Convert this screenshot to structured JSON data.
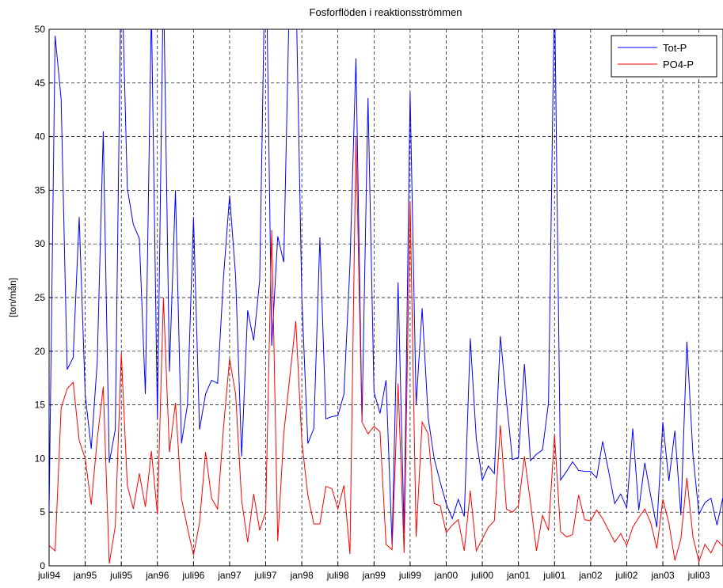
{
  "chart_data": {
    "type": "line",
    "title": "Fosforflöden i reaktionsströmmen",
    "y_label": "[ton/mån]",
    "categories": [
      "juli94",
      null,
      null,
      null,
      null,
      null,
      "jan95",
      null,
      null,
      null,
      null,
      null,
      "juli95",
      null,
      null,
      null,
      null,
      null,
      "jan96",
      null,
      null,
      null,
      null,
      null,
      "juli96",
      null,
      null,
      null,
      null,
      null,
      "jan97",
      null,
      null,
      null,
      null,
      null,
      "juli97",
      null,
      null,
      null,
      null,
      null,
      "jan98",
      null,
      null,
      null,
      null,
      null,
      "juli98",
      null,
      null,
      null,
      null,
      null,
      "jan99",
      null,
      null,
      null,
      null,
      null,
      "juli99",
      null,
      null,
      null,
      null,
      null,
      "jan00",
      null,
      null,
      null,
      null,
      null,
      "juli00",
      null,
      null,
      null,
      null,
      null,
      "jan01",
      null,
      null,
      null,
      null,
      null,
      "juli01",
      null,
      null,
      null,
      null,
      null,
      "jan02",
      null,
      null,
      null,
      null,
      null,
      "juli02",
      null,
      null,
      null,
      null,
      null,
      "jan03",
      null,
      null,
      null,
      null,
      null,
      "juli03",
      null,
      null,
      null,
      null
    ],
    "series": [
      {
        "name": "Tot-P",
        "color": "#0000ff",
        "values": [
          5,
          49.4,
          43.5,
          18.3,
          19.4,
          32.5,
          16,
          10.9,
          19,
          40.5,
          9.6,
          12.7,
          57,
          35.2,
          31.8,
          30.5,
          16,
          52,
          13.7,
          55,
          18.1,
          35,
          11.4,
          15,
          32.5,
          12.7,
          16,
          17.3,
          17,
          27,
          34.5,
          27,
          10.2,
          23.8,
          21,
          26.6,
          60,
          20.5,
          30.7,
          28.3,
          55,
          55,
          25,
          11.4,
          12.8,
          30.6,
          13.7,
          13.9,
          14,
          16,
          28,
          47.3,
          13.4,
          43.6,
          16.2,
          14.2,
          17.3,
          2,
          26.4,
          3.1,
          44.1,
          15,
          24,
          13.8,
          10,
          7.8,
          5.8,
          4.4,
          6.2,
          4.6,
          21.2,
          11.8,
          8,
          9.3,
          8.6,
          21.4,
          15.4,
          9.9,
          10.1,
          18.8,
          9.8,
          10.4,
          10.8,
          15.2,
          54,
          8,
          8.8,
          9.7,
          8.9,
          8.8,
          8.8,
          8.2,
          11.6,
          8.8,
          5.8,
          6.7,
          5.4,
          12.8,
          5.2,
          9.6,
          6.5,
          3.6,
          13.4,
          7.9,
          12.6,
          4.7,
          20.9,
          10.4,
          4.8,
          5.9,
          6.3,
          3.8,
          6.4
        ]
      },
      {
        "name": "PO4-P",
        "color": "#ff0000",
        "values": [
          1.9,
          1.4,
          14.7,
          16.5,
          17.1,
          11.7,
          10,
          5.7,
          11.8,
          16.7,
          0.2,
          3.7,
          19.8,
          7.5,
          5.3,
          8.6,
          5.5,
          10.7,
          4.8,
          25,
          10.6,
          15.2,
          6.3,
          3.5,
          1,
          4,
          10.6,
          6.3,
          5.3,
          13,
          19.3,
          16,
          6.1,
          2.2,
          6.7,
          3.3,
          5,
          31.3,
          2.3,
          12.3,
          17.6,
          22.8,
          11.6,
          6.6,
          3.9,
          3.9,
          7.4,
          7.2,
          5.3,
          7.5,
          1.1,
          40,
          13.4,
          12.3,
          13,
          12.5,
          2,
          1.5,
          17,
          1.2,
          34,
          2.7,
          13.4,
          12.3,
          5.8,
          5.6,
          3.1,
          3.8,
          4.3,
          1.4,
          7,
          1.4,
          2.5,
          3.6,
          4.2,
          13.1,
          5.3,
          5,
          5.6,
          10.2,
          5.9,
          1.4,
          4.7,
          3.3,
          12.2,
          3.2,
          2.7,
          2.9,
          6.6,
          4.3,
          4.2,
          5.2,
          4.4,
          3.3,
          2.2,
          3,
          1.9,
          3.6,
          4.5,
          5.3,
          4,
          1.6,
          6.2,
          4,
          0.5,
          2.5,
          8.2,
          2.7,
          0.4,
          2,
          1.2,
          2.4,
          1.8
        ]
      }
    ],
    "ylim": [
      0,
      50
    ],
    "yticks": [
      0,
      5,
      10,
      15,
      20,
      25,
      30,
      35,
      40,
      45,
      50
    ],
    "grid": true,
    "legend": "top-right"
  }
}
